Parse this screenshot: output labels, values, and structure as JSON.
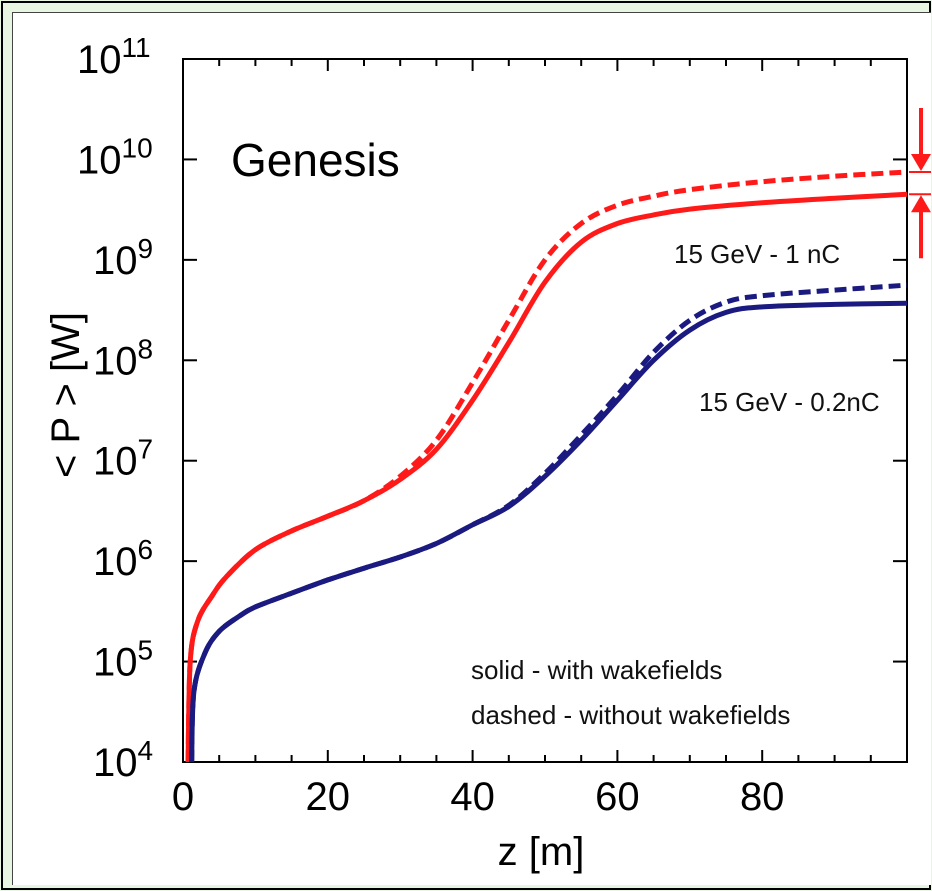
{
  "chart_data": {
    "type": "line",
    "title": "",
    "xlabel": "z [m]",
    "ylabel": "< P > [W]",
    "xlim": [
      0,
      100
    ],
    "ylim": [
      10000,
      100000000000
    ],
    "yscale": "log",
    "x_ticks": [
      "0",
      "20",
      "40",
      "60",
      "80"
    ],
    "y_ticks": [
      {
        "base": "10",
        "exp": "4"
      },
      {
        "base": "10",
        "exp": "5"
      },
      {
        "base": "10",
        "exp": "6"
      },
      {
        "base": "10",
        "exp": "7"
      },
      {
        "base": "10",
        "exp": "8"
      },
      {
        "base": "10",
        "exp": "9"
      },
      {
        "base": "10",
        "exp": "10"
      },
      {
        "base": "10",
        "exp": "11"
      }
    ],
    "series": [
      {
        "name": "15 GeV - 1 nC",
        "style": "solid",
        "color": "#ff1a1a",
        "x": [
          0.7,
          1,
          2,
          4,
          6,
          10,
          15,
          20,
          25,
          30,
          35,
          40,
          45,
          50,
          55,
          60,
          65,
          70,
          80,
          90,
          100
        ],
        "y": [
          10000,
          100000,
          250000,
          450000,
          700000,
          1300000,
          2000000,
          2800000,
          4000000,
          6500000,
          13000000,
          40000000,
          150000000,
          600000000,
          1500000000,
          2300000000,
          2800000000,
          3200000000,
          3700000000,
          4100000000,
          4500000000
        ]
      },
      {
        "name": "15 GeV - 1 nC",
        "style": "dashed",
        "color": "#ff1a1a",
        "x": [
          0.7,
          1,
          2,
          4,
          6,
          10,
          15,
          20,
          25,
          30,
          35,
          40,
          45,
          50,
          55,
          60,
          65,
          70,
          80,
          90,
          100
        ],
        "y": [
          10000,
          100000,
          250000,
          450000,
          700000,
          1300000,
          2000000,
          2800000,
          4000000,
          7000000,
          16000000,
          60000000,
          250000000,
          1000000000,
          2300000000,
          3500000000,
          4300000000,
          5000000000,
          6000000000,
          6800000000,
          7500000000
        ]
      },
      {
        "name": "15 GeV - 0.2nC",
        "style": "solid",
        "color": "#1a1a80",
        "x": [
          1.2,
          1.5,
          3,
          5,
          8,
          10,
          15,
          20,
          25,
          30,
          35,
          40,
          45,
          50,
          55,
          60,
          65,
          70,
          75,
          80,
          90,
          100
        ],
        "y": [
          10000,
          50000,
          120000,
          200000,
          290000,
          350000,
          480000,
          650000,
          850000,
          1100000,
          1500000,
          2300000,
          3500000,
          7000000,
          16000000,
          40000000,
          100000000,
          200000000,
          300000000,
          340000000,
          360000000,
          370000000
        ]
      },
      {
        "name": "15 GeV - 0.2nC",
        "style": "dashed",
        "color": "#1a1a80",
        "x": [
          1.2,
          1.5,
          3,
          5,
          8,
          10,
          15,
          20,
          25,
          30,
          35,
          40,
          45,
          50,
          55,
          60,
          65,
          70,
          75,
          80,
          90,
          100
        ],
        "y": [
          10000,
          50000,
          120000,
          200000,
          290000,
          350000,
          480000,
          650000,
          850000,
          1100000,
          1500000,
          2300000,
          3600000,
          7500000,
          18000000,
          45000000,
          120000000,
          250000000,
          380000000,
          440000000,
          500000000,
          560000000
        ]
      }
    ],
    "annotations": {
      "method": "Genesis",
      "label_1nC": "15 GeV - 1 nC",
      "label_02nC": "15 GeV - 0.2nC",
      "legend_solid": "solid - with wakefields",
      "legend_dashed": "dashed - without wakefields"
    },
    "colors": {
      "red": "#ff1a1a",
      "blue": "#1a1a80",
      "background_border": "#e8f5e0"
    }
  }
}
